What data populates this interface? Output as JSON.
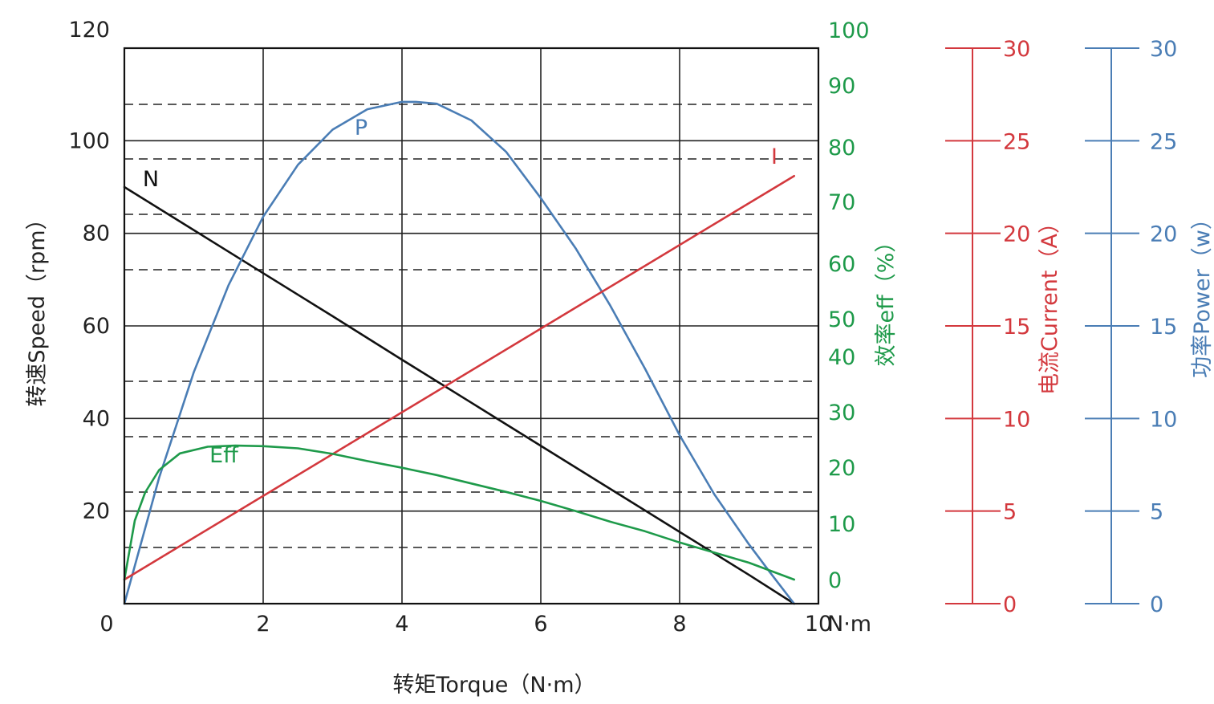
{
  "chart_data": {
    "type": "line",
    "xlabel": "转矩Torque（N·m）",
    "x_unit": "N·m",
    "xlim": [
      0,
      10
    ],
    "x_ticks": [
      "0",
      "2",
      "4",
      "6",
      "8",
      "10"
    ],
    "axes": {
      "speed": {
        "label": "转速Speed（rpm）",
        "range": [
          0,
          120
        ],
        "ticks": [
          "20",
          "40",
          "60",
          "80",
          "100",
          "120"
        ],
        "color": "#222222"
      },
      "eff": {
        "label": "效率eff（%）",
        "ticks": [
          "0",
          "10",
          "20",
          "30",
          "40",
          "50",
          "60",
          "70",
          "80",
          "90",
          "100"
        ],
        "color": "#1e9a4a"
      },
      "current": {
        "label": "电流Current（A）",
        "range": [
          0,
          30
        ],
        "ticks": [
          "0",
          "5",
          "10",
          "15",
          "20",
          "25",
          "30"
        ],
        "color": "#d3383d"
      },
      "power": {
        "label": "功率Power（w）",
        "range": [
          0,
          30
        ],
        "ticks": [
          "0",
          "5",
          "10",
          "15",
          "20",
          "25",
          "30"
        ],
        "color": "#4a7db5"
      }
    },
    "grid": true,
    "series": [
      {
        "name": "N",
        "axis": "speed",
        "color": "#111111",
        "x": [
          0,
          1,
          2,
          3,
          4,
          5,
          6,
          7,
          8,
          9,
          9.65
        ],
        "y": [
          90,
          80.7,
          71.4,
          62.1,
          52.7,
          43.4,
          34.1,
          24.8,
          15.5,
          6.2,
          0
        ]
      },
      {
        "name": "P",
        "axis": "power",
        "color": "#4a7db5",
        "x": [
          0,
          0.5,
          1,
          1.5,
          2,
          2.5,
          3,
          3.5,
          4,
          4.2,
          4.5,
          5,
          5.5,
          6,
          6.5,
          7,
          7.5,
          8,
          8.5,
          9,
          9.3,
          9.65
        ],
        "y": [
          0,
          6.8,
          12.5,
          17.2,
          20.9,
          23.7,
          25.6,
          26.7,
          27.1,
          27.1,
          27.0,
          26.1,
          24.4,
          21.9,
          19.2,
          16.1,
          12.7,
          9.1,
          5.9,
          3.2,
          1.7,
          0
        ]
      },
      {
        "name": "I",
        "axis": "current",
        "color": "#d3383d",
        "x": [
          0,
          9.65
        ],
        "y": [
          1.3,
          23.1
        ]
      },
      {
        "name": "Eff",
        "axis": "eff",
        "color": "#1e9a4a",
        "x": [
          0,
          0.15,
          0.3,
          0.5,
          0.8,
          1.2,
          1.6,
          2,
          2.5,
          3,
          3.5,
          4,
          4.5,
          5,
          5.5,
          6,
          6.5,
          7,
          7.5,
          8,
          8.5,
          9,
          9.65
        ],
        "y": [
          0,
          10.5,
          15.5,
          19.5,
          22.5,
          23.7,
          23.9,
          23.8,
          23.4,
          22.4,
          21.1,
          19.9,
          18.6,
          17.1,
          15.6,
          14.0,
          12.2,
          10.3,
          8.6,
          6.6,
          4.8,
          3.0,
          0
        ]
      }
    ]
  }
}
